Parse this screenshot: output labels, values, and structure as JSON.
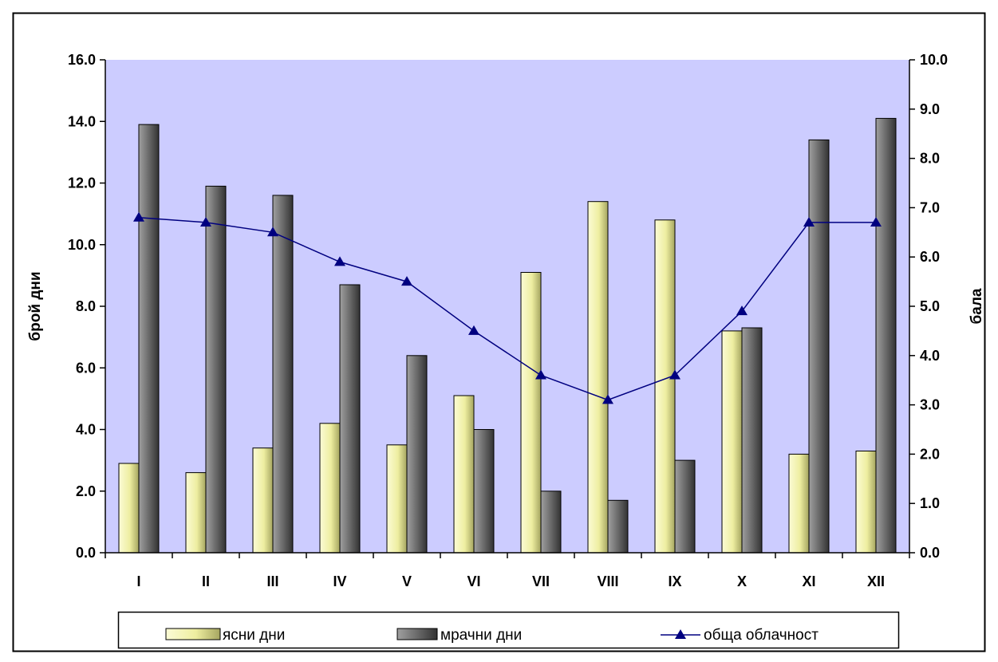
{
  "chart_data": {
    "type": "bar",
    "categories": [
      "I",
      "II",
      "III",
      "IV",
      "V",
      "VI",
      "VII",
      "VIII",
      "IX",
      "X",
      "XI",
      "XII"
    ],
    "series": [
      {
        "name": "ясни дни",
        "type": "bar",
        "axis": "left",
        "color": "#f0f0a8",
        "values": [
          2.9,
          2.6,
          3.4,
          4.2,
          3.5,
          5.1,
          9.1,
          11.4,
          10.8,
          7.2,
          3.2,
          3.3
        ]
      },
      {
        "name": "мрачни дни",
        "type": "bar",
        "axis": "left",
        "color": "#777777",
        "values": [
          13.9,
          11.9,
          11.6,
          8.7,
          6.4,
          4.0,
          2.0,
          1.7,
          3.0,
          7.3,
          13.4,
          14.1
        ]
      },
      {
        "name": "обща облачност",
        "type": "line",
        "axis": "right",
        "color": "#000080",
        "marker": "triangle",
        "values": [
          6.8,
          6.7,
          6.5,
          5.9,
          5.5,
          4.5,
          3.6,
          3.1,
          3.6,
          4.9,
          6.7,
          6.7
        ]
      }
    ],
    "ylabel": "брой дни",
    "y2label": "бала",
    "ylim": [
      0,
      16
    ],
    "y_ticks": [
      "0.0",
      "2.0",
      "4.0",
      "6.0",
      "8.0",
      "10.0",
      "12.0",
      "14.0",
      "16.0"
    ],
    "y2lim": [
      0,
      10
    ],
    "y2_ticks": [
      "0.0",
      "1.0",
      "2.0",
      "3.0",
      "4.0",
      "5.0",
      "6.0",
      "7.0",
      "8.0",
      "9.0",
      "10.0"
    ],
    "plot_background": "#ccccff",
    "grid": false,
    "legend_position": "bottom"
  }
}
